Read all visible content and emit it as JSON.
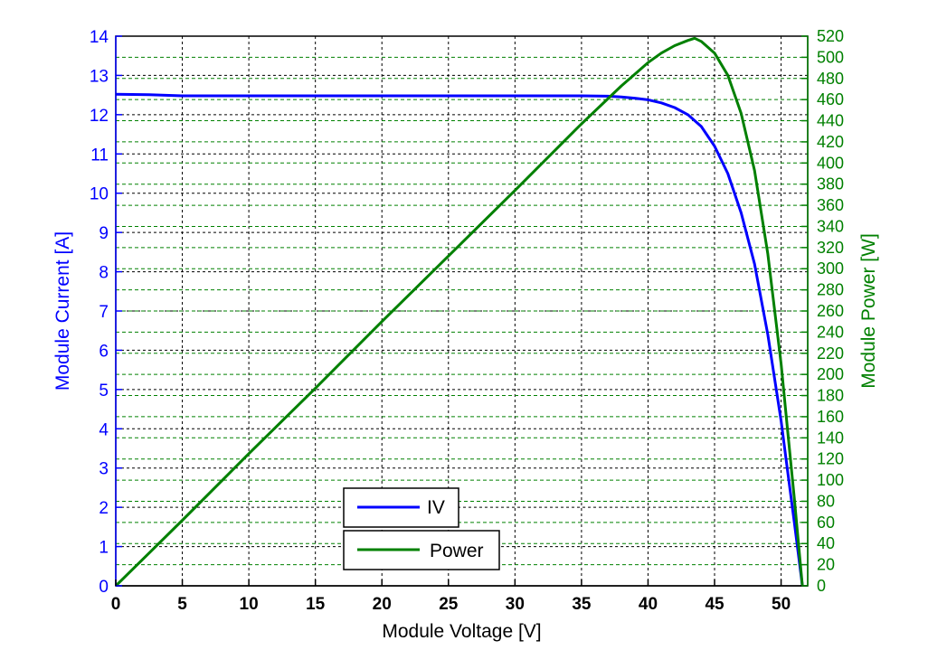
{
  "chart_data": {
    "type": "line",
    "title": "",
    "xlabel": "Module Voltage [V]",
    "ylabel_left": "Module Current [A]",
    "ylabel_right": "Module Power [W]",
    "xlim": [
      0,
      52
    ],
    "ylim_left": [
      0,
      14
    ],
    "ylim_right": [
      0,
      520
    ],
    "x_ticks": [
      0,
      5,
      10,
      15,
      20,
      25,
      30,
      35,
      40,
      45,
      50
    ],
    "y_left_ticks": [
      0,
      1,
      2,
      3,
      4,
      5,
      6,
      7,
      8,
      9,
      10,
      11,
      12,
      13,
      14
    ],
    "y_right_ticks": [
      0,
      20,
      40,
      60,
      80,
      100,
      120,
      140,
      160,
      180,
      200,
      220,
      240,
      260,
      280,
      300,
      320,
      340,
      360,
      380,
      400,
      420,
      440,
      460,
      480,
      500,
      520
    ],
    "grid": true,
    "legend_position": "bottom-center",
    "colors": {
      "iv": "#0000ff",
      "power": "#008000",
      "left_axis": "#0000ff",
      "right_axis": "#008000",
      "x_axis": "#000000"
    },
    "series": [
      {
        "name": "IV",
        "axis": "left",
        "x": [
          0,
          2.5,
          5,
          10,
          15,
          20,
          25,
          30,
          35,
          37,
          38,
          39,
          40,
          41,
          42,
          43,
          44,
          45,
          46,
          47,
          48,
          49,
          50,
          50.5,
          51,
          51.3,
          51.6
        ],
        "y": [
          12.52,
          12.51,
          12.48,
          12.48,
          12.48,
          12.48,
          12.48,
          12.48,
          12.48,
          12.47,
          12.45,
          12.42,
          12.38,
          12.3,
          12.18,
          12.0,
          11.7,
          11.2,
          10.5,
          9.5,
          8.2,
          6.4,
          4.2,
          2.9,
          1.6,
          0.8,
          0
        ]
      },
      {
        "name": "Power",
        "axis": "right",
        "x": [
          0,
          2.5,
          5,
          10,
          15,
          20,
          25,
          30,
          35,
          37,
          38,
          39,
          40,
          41,
          42,
          43,
          43.5,
          44,
          45,
          46,
          47,
          48,
          49,
          50,
          50.5,
          51,
          51.3,
          51.6
        ],
        "y": [
          0,
          31,
          62,
          125,
          187,
          250,
          312,
          374,
          437,
          461,
          473,
          484,
          495,
          504,
          511,
          516,
          518,
          515,
          504,
          483,
          447,
          393,
          314,
          210,
          146,
          82,
          41,
          0
        ]
      }
    ]
  }
}
